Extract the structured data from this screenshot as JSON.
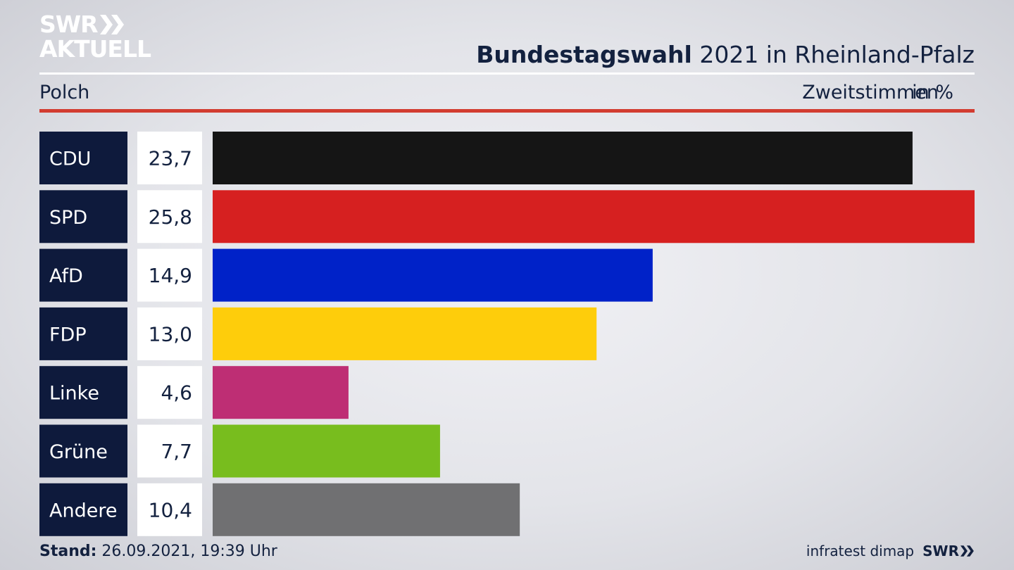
{
  "logo": {
    "line1": "SWR",
    "line2": "AKTUELL"
  },
  "header": {
    "title_bold": "Bundestagswahl",
    "title_rest": " 2021 in Rheinland-Pfalz",
    "region": "Polch",
    "metric": "Zweitstimmen",
    "unit": "in %"
  },
  "footer": {
    "stand_label": "Stand:",
    "stand_value": " 26.09.2021, 19:39 Uhr",
    "source": "infratest dimap",
    "brand": "SWR"
  },
  "chart_data": {
    "type": "bar",
    "orientation": "horizontal",
    "categories": [
      "CDU",
      "SPD",
      "AfD",
      "FDP",
      "Linke",
      "Grüne",
      "Andere"
    ],
    "values": [
      23.7,
      25.8,
      14.9,
      13.0,
      4.6,
      7.7,
      10.4
    ],
    "value_labels": [
      "23,7",
      "25,8",
      "14,9",
      "13,0",
      "4,6",
      "7,7",
      "10,4"
    ],
    "colors": [
      "#151515",
      "#d62020",
      "#0022c8",
      "#fecd0b",
      "#be2e74",
      "#78bd1e",
      "#707072"
    ],
    "xlim": [
      0,
      25.8
    ],
    "label_box_color": "#0e1a3c",
    "value_box_color": "#ffffff"
  }
}
